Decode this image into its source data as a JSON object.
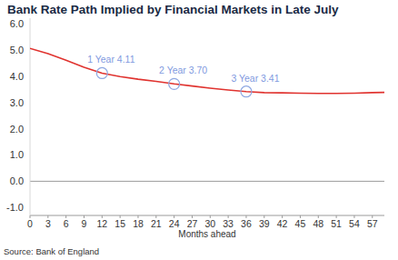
{
  "chart_data": {
    "type": "line",
    "title": "Bank Rate Path Implied by Financial Markets in Late July",
    "x_label": "Months ahead",
    "source": "Source: Bank of England",
    "x": [
      0,
      3,
      6,
      9,
      12,
      15,
      18,
      21,
      24,
      27,
      30,
      33,
      36,
      39,
      42,
      45,
      48,
      51,
      54,
      57,
      59
    ],
    "values": [
      5.05,
      4.85,
      4.6,
      4.33,
      4.11,
      3.98,
      3.88,
      3.8,
      3.7,
      3.62,
      3.54,
      3.47,
      3.41,
      3.37,
      3.36,
      3.35,
      3.34,
      3.34,
      3.35,
      3.37,
      3.38
    ],
    "color": "#e0332f",
    "xlim": [
      0,
      59
    ],
    "xticks": [
      0,
      3,
      6,
      9,
      12,
      15,
      18,
      21,
      24,
      27,
      30,
      33,
      36,
      39,
      42,
      45,
      48,
      51,
      54,
      57
    ],
    "ylim": [
      -1.3,
      6.2
    ],
    "yticks": [
      {
        "value": -1,
        "label": "-1.0"
      },
      {
        "value": 0,
        "label": "0.0"
      },
      {
        "value": 1,
        "label": "1.0"
      },
      {
        "value": 2,
        "label": "2.0"
      },
      {
        "value": 3,
        "label": "3.0"
      },
      {
        "value": 4,
        "label": "4.0"
      },
      {
        "value": 5,
        "label": "5.0"
      },
      {
        "value": 6,
        "label": "6.0"
      }
    ],
    "grid": false,
    "annotations": [
      {
        "text": "1 Year 4.11",
        "x": 12,
        "y": 4.11
      },
      {
        "text": "2 Year 3.70",
        "x": 24,
        "y": 3.7
      },
      {
        "text": "3 Year 3.41",
        "x": 36,
        "y": 3.41
      }
    ]
  }
}
